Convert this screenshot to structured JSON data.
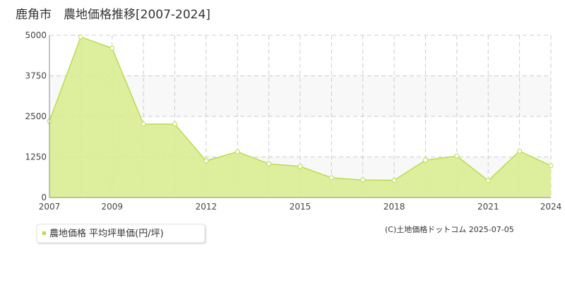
{
  "chart_data": {
    "type": "area",
    "title": "鹿角市　農地価格推移[2007-2024]",
    "categories": [
      "2007",
      null,
      "2009",
      null,
      null,
      "2012",
      null,
      null,
      "2015",
      null,
      null,
      "2018",
      null,
      null,
      "2021",
      null,
      "2024"
    ],
    "series": [
      {
        "name": "農地価格 平均坪単価(円/坪)",
        "color": "#b9dc4c",
        "values": [
          2350,
          4950,
          4600,
          2260,
          2260,
          1130,
          1410,
          1040,
          960,
          610,
          540,
          530,
          1150,
          1280,
          520,
          1430,
          980
        ]
      }
    ],
    "ylim": [
      0,
      5000
    ],
    "yticks": [
      0,
      1250,
      2500,
      3750,
      5000
    ],
    "grid": true,
    "copyright": "(C)土地価格ドットコム 2025-07-05"
  }
}
